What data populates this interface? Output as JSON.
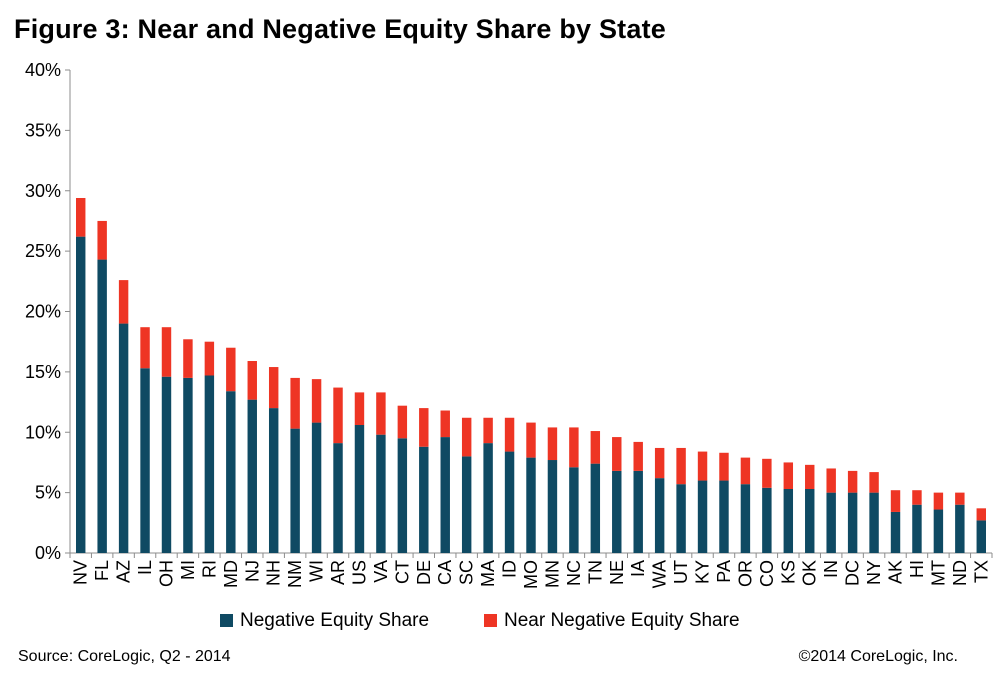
{
  "chart_data": {
    "type": "bar",
    "stacked": true,
    "title": "Figure 3: Near and Negative Equity Share by State",
    "categories": [
      "NV",
      "FL",
      "AZ",
      "IL",
      "OH",
      "MI",
      "RI",
      "MD",
      "NJ",
      "NH",
      "NM",
      "WI",
      "AR",
      "US",
      "VA",
      "CT",
      "DE",
      "CA",
      "SC",
      "MA",
      "ID",
      "MO",
      "MN",
      "NC",
      "TN",
      "NE",
      "IA",
      "WA",
      "UT",
      "KY",
      "PA",
      "OR",
      "CO",
      "KS",
      "OK",
      "IN",
      "DC",
      "NY",
      "AK",
      "HI",
      "MT",
      "ND",
      "TX"
    ],
    "series": [
      {
        "name": "Negative Equity Share",
        "color": "#0f4a63",
        "values": [
          26.2,
          24.3,
          19.0,
          15.3,
          14.6,
          14.5,
          14.7,
          13.4,
          12.7,
          12.0,
          10.3,
          10.8,
          9.1,
          10.6,
          9.8,
          9.5,
          8.8,
          9.6,
          8.0,
          9.1,
          8.4,
          7.9,
          7.7,
          7.1,
          7.4,
          6.8,
          6.8,
          6.2,
          5.7,
          6.0,
          6.0,
          5.7,
          5.4,
          5.3,
          5.3,
          5.0,
          5.0,
          5.0,
          3.4,
          4.0,
          3.6,
          4.0,
          2.7
        ]
      },
      {
        "name": "Near Negative Equity Share",
        "color": "#ee3524",
        "values": [
          3.2,
          3.2,
          3.6,
          3.4,
          4.1,
          3.2,
          2.8,
          3.6,
          3.2,
          3.4,
          4.2,
          3.6,
          4.6,
          2.7,
          3.5,
          2.7,
          3.2,
          2.2,
          3.2,
          2.1,
          2.8,
          2.9,
          2.7,
          3.3,
          2.7,
          2.8,
          2.4,
          2.5,
          3.0,
          2.4,
          2.3,
          2.2,
          2.4,
          2.2,
          2.0,
          2.0,
          1.8,
          1.7,
          1.8,
          1.2,
          1.4,
          1.0,
          1.0
        ]
      }
    ],
    "ylim": [
      0,
      40
    ],
    "yticks": [
      0,
      5,
      10,
      15,
      20,
      25,
      30,
      35,
      40
    ],
    "ytick_suffix": "%",
    "xlabel": "",
    "ylabel": "",
    "grid": false,
    "legend": "bottom"
  },
  "footer": {
    "source": "Source: CoreLogic, Q2 - 2014",
    "copyright": "©2014 CoreLogic, Inc."
  }
}
